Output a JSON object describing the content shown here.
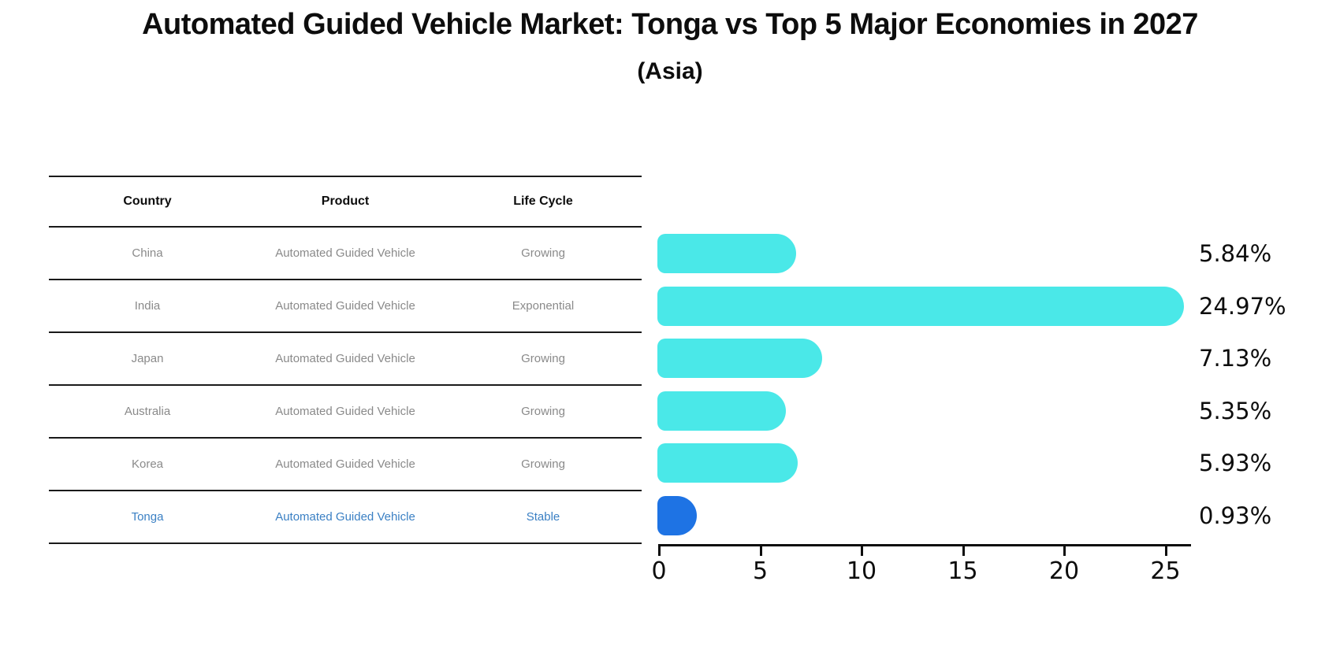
{
  "title": "Automated Guided Vehicle Market: Tonga vs Top 5 Major Economies in 2027",
  "subtitle": "(Asia)",
  "table": {
    "columns": [
      "Country",
      "Product",
      "Life Cycle"
    ],
    "rows": [
      {
        "country": "China",
        "product": "Automated Guided Vehicle",
        "life_cycle": "Growing",
        "highlight": false
      },
      {
        "country": "India",
        "product": "Automated Guided Vehicle",
        "life_cycle": "Exponential",
        "highlight": false
      },
      {
        "country": "Japan",
        "product": "Automated Guided Vehicle",
        "life_cycle": "Growing",
        "highlight": false
      },
      {
        "country": "Australia",
        "product": "Automated Guided Vehicle",
        "life_cycle": "Growing",
        "highlight": false
      },
      {
        "country": "Korea",
        "product": "Automated Guided Vehicle",
        "life_cycle": "Growing",
        "highlight": false
      },
      {
        "country": "Tonga",
        "product": "Automated Guided Vehicle",
        "life_cycle": "Stable",
        "highlight": true
      }
    ]
  },
  "chart_data": {
    "type": "bar",
    "orientation": "horizontal",
    "categories": [
      "China",
      "India",
      "Japan",
      "Australia",
      "Korea",
      "Tonga"
    ],
    "values": [
      5.84,
      24.97,
      7.13,
      5.35,
      5.93,
      0.93
    ],
    "value_labels": [
      "5.84%",
      "24.97%",
      "7.13%",
      "5.35%",
      "5.93%",
      "0.93%"
    ],
    "x_ticks": [
      0,
      5,
      10,
      15,
      20,
      25
    ],
    "xlim": [
      0,
      26.3
    ],
    "grid": false,
    "legend": "none",
    "highlight_index": 5,
    "title": "Automated Guided Vehicle Market: Tonga vs Top 5 Major Economies in 2027",
    "xlabel": "",
    "ylabel": ""
  },
  "colors": {
    "bar_default": "#4AE8E8",
    "bar_highlight": "#1E73E4",
    "highlight_text": "#3B80C4",
    "row_text": "#8A8A8A",
    "axis": "#0D0D0D"
  }
}
